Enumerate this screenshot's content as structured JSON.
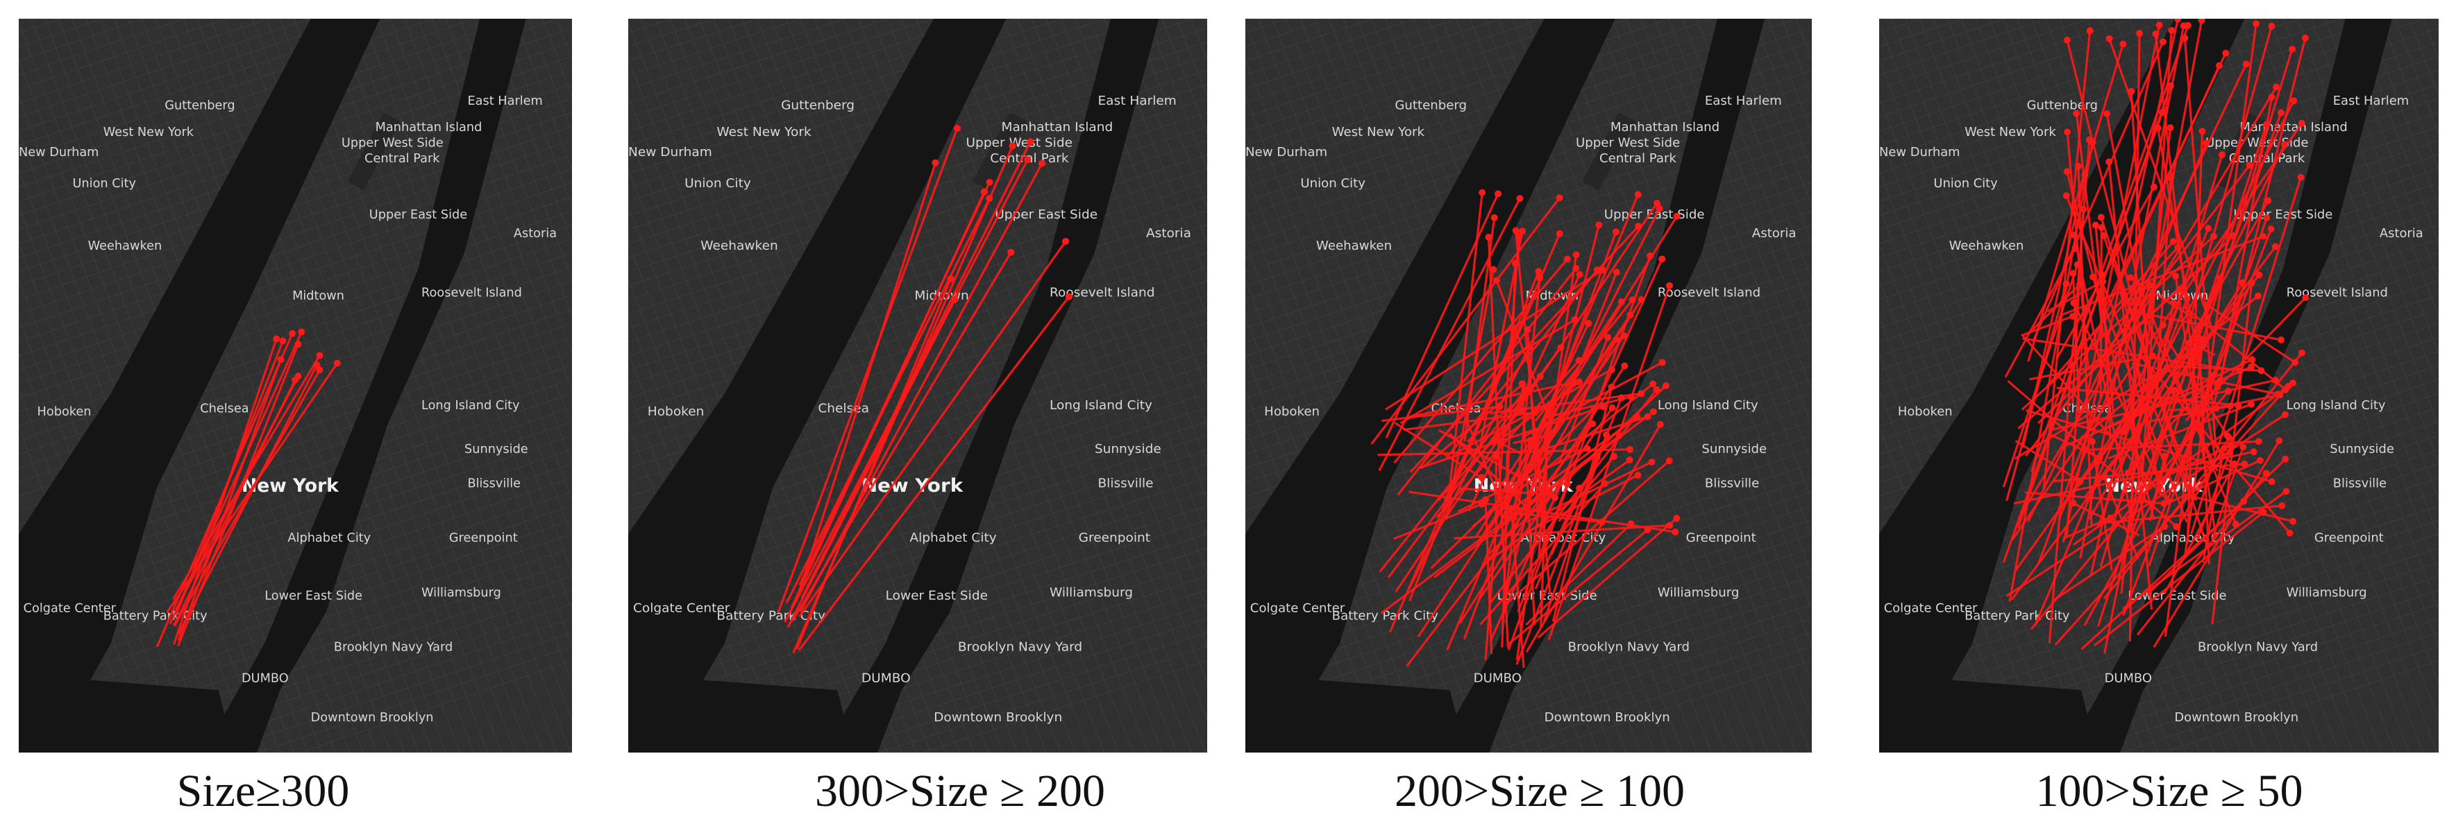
{
  "panels": [
    {
      "caption": "Size≥300"
    },
    {
      "caption": "300>Size ≥ 200"
    },
    {
      "caption": "200>Size ≥ 100"
    },
    {
      "caption": "100>Size ≥ 50"
    }
  ],
  "map_labels": [
    "Guttenberg",
    "West New York",
    "New Durham",
    "Union City",
    "Weehawken",
    "Hoboken",
    "New York",
    "Central Park",
    "Manhattan Island",
    "Roosevelt Island",
    "Long Island City",
    "Greenpoint",
    "Williamsburg",
    "DUMBO",
    "Downtown Brooklyn",
    "Astoria",
    "Sunnyside",
    "Chelsea",
    "Midtown",
    "Lower East Side",
    "Battery Park City",
    "Colgate Center",
    "Alphabet City",
    "Upper West Side",
    "Upper East Side",
    "East Harlem",
    "Brooklyn Navy Yard",
    "Blissville"
  ]
}
